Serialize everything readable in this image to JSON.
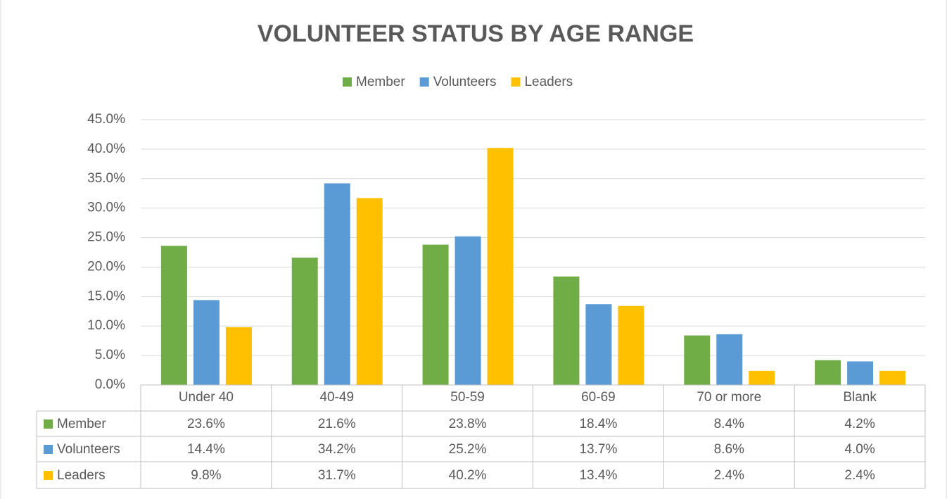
{
  "chart_data": {
    "type": "bar",
    "title": "VOLUNTEER STATUS BY AGE RANGE",
    "categories": [
      "Under 40",
      "40-49",
      "50-59",
      "60-69",
      "70 or more",
      "Blank"
    ],
    "series": [
      {
        "name": "Member",
        "color": "#70ad47",
        "values": [
          23.6,
          21.6,
          23.8,
          18.4,
          8.4,
          4.2
        ],
        "value_labels": [
          "23.6%",
          "21.6%",
          "23.8%",
          "18.4%",
          "8.4%",
          "4.2%"
        ]
      },
      {
        "name": "Volunteers",
        "color": "#5b9bd5",
        "values": [
          14.4,
          34.2,
          25.2,
          13.7,
          8.6,
          4.0
        ],
        "value_labels": [
          "14.4%",
          "34.2%",
          "25.2%",
          "13.7%",
          "8.6%",
          "4.0%"
        ]
      },
      {
        "name": "Leaders",
        "color": "#ffc000",
        "values": [
          9.8,
          31.7,
          40.2,
          13.4,
          2.4,
          2.4
        ],
        "value_labels": [
          "9.8%",
          "31.7%",
          "40.2%",
          "13.4%",
          "2.4%",
          "2.4%"
        ]
      }
    ],
    "ylim": [
      0,
      45
    ],
    "yticks": [
      {
        "value": 0,
        "label": "0.0%"
      },
      {
        "value": 5,
        "label": "5.0%"
      },
      {
        "value": 10,
        "label": "10.0%"
      },
      {
        "value": 15,
        "label": "15.0%"
      },
      {
        "value": 20,
        "label": "20.0%"
      },
      {
        "value": 25,
        "label": "25.0%"
      },
      {
        "value": 30,
        "label": "30.0%"
      },
      {
        "value": 35,
        "label": "35.0%"
      },
      {
        "value": 40,
        "label": "40.0%"
      },
      {
        "value": 45,
        "label": "45.0%"
      }
    ],
    "grid": true,
    "legend": "top"
  }
}
